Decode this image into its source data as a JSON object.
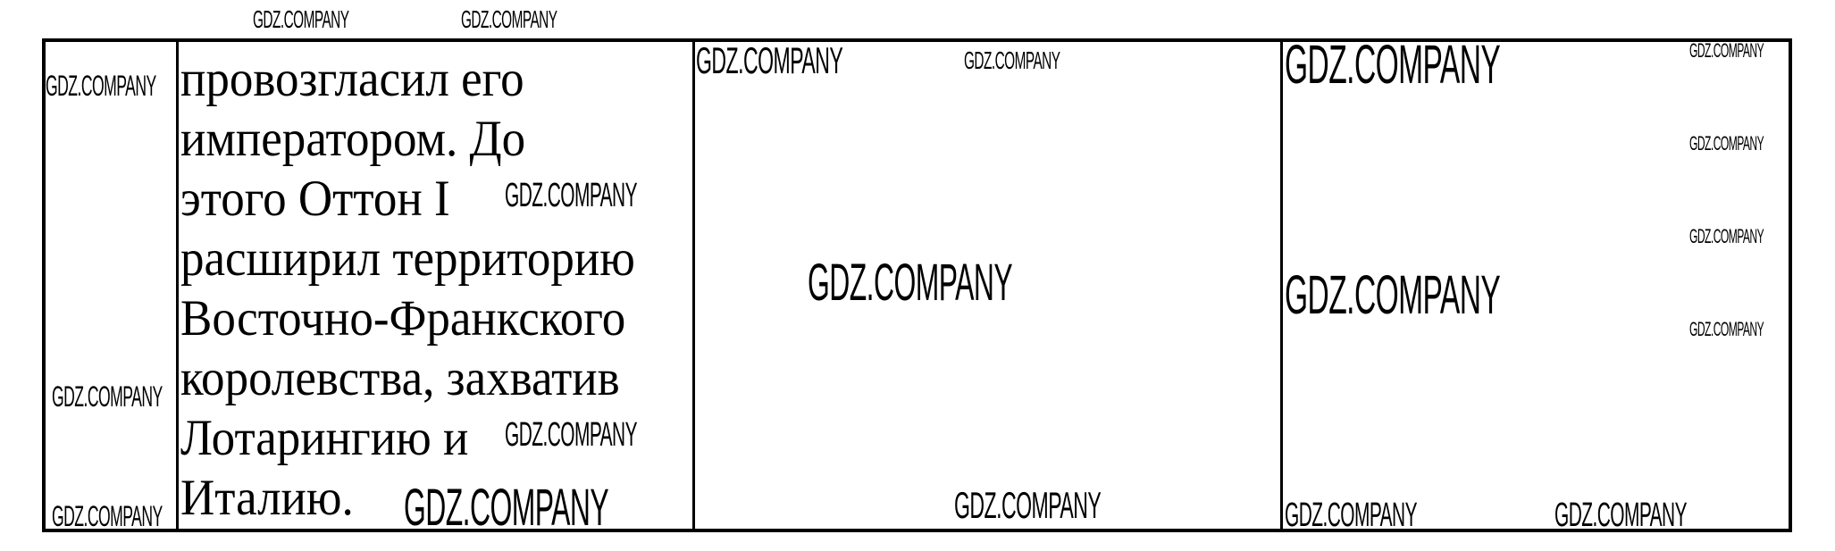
{
  "document": {
    "paragraph_lines": [
      "провозгласил его",
      "императором. До",
      "этого Оттон I",
      "расширил территорию",
      "Восточно-Франкского",
      "королевства, захватив",
      "Лотарингию и",
      "Италию."
    ],
    "watermark": "GDZ.COMPANY"
  }
}
